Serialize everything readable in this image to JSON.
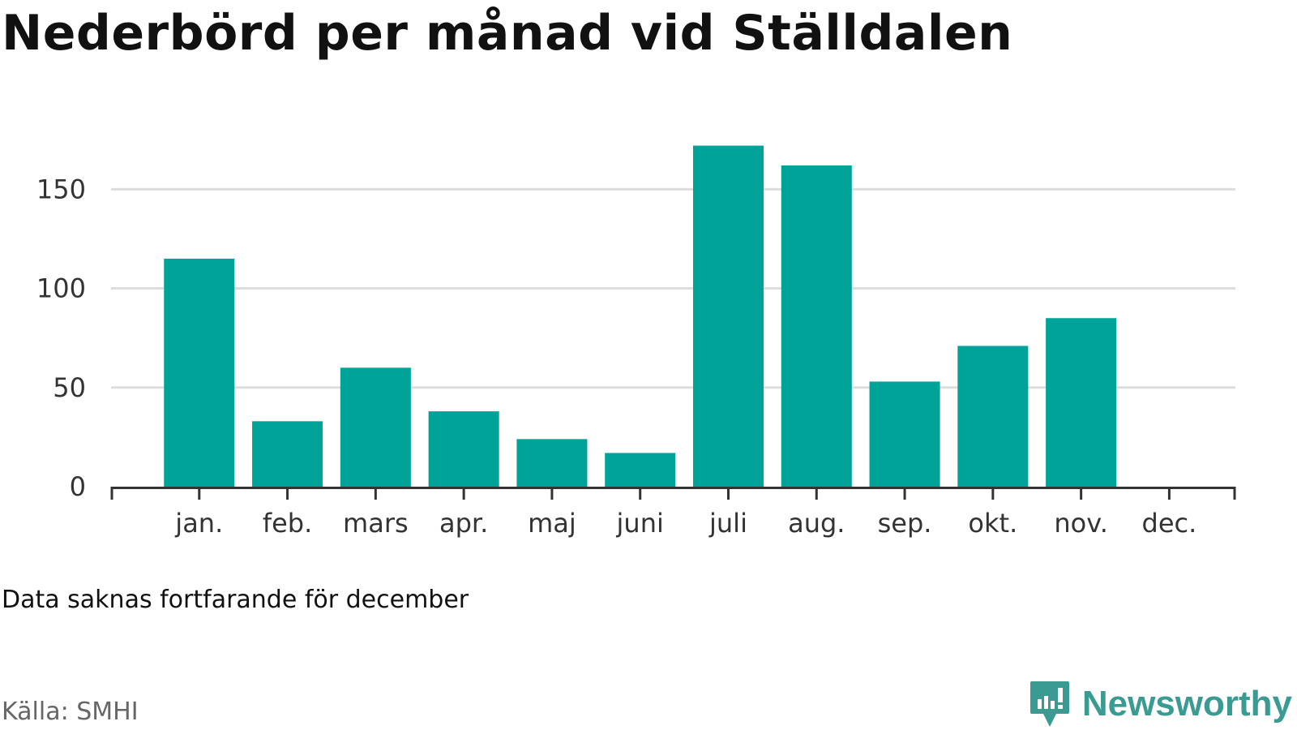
{
  "title": "Nederbörd per månad vid Ställdalen",
  "note": "Data saknas fortfarande för december",
  "source": "Källa: SMHI",
  "brand": {
    "name": "Newsworthy",
    "icon": "bar-chart-speech-bubble-icon",
    "color": "#3a9b92"
  },
  "colors": {
    "bar": "#00a398",
    "grid": "#dddddd",
    "axis": "#333333"
  },
  "chart_data": {
    "type": "bar",
    "title": "Nederbörd per månad vid Ställdalen",
    "xlabel": "",
    "ylabel": "",
    "categories": [
      "jan.",
      "feb.",
      "mars",
      "apr.",
      "maj",
      "juni",
      "juli",
      "aug.",
      "sep.",
      "okt.",
      "nov.",
      "dec."
    ],
    "values": [
      115,
      33,
      60,
      38,
      24,
      17,
      172,
      162,
      53,
      71,
      85,
      null
    ],
    "ylim": [
      0,
      180
    ],
    "yticks": [
      0,
      50,
      100,
      150
    ],
    "grid": true,
    "legend": "none"
  }
}
